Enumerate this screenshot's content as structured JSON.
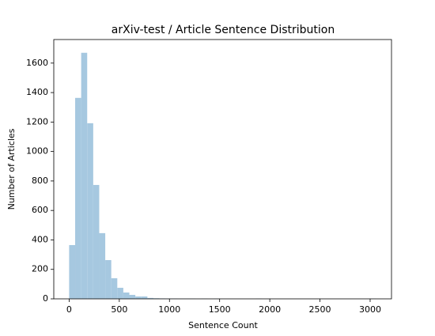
{
  "chart_data": {
    "type": "histogram",
    "title": "arXiv-test / Article Sentence Distribution",
    "x_label": "Sentence Count",
    "y_label": "Number of Articles",
    "color": "#a6c8e0",
    "bins": [
      0,
      60,
      120,
      180,
      240,
      300,
      360,
      420,
      480,
      540,
      600,
      660,
      720,
      780,
      840,
      900,
      960,
      1020,
      1080,
      1140,
      1200,
      1260,
      1320,
      1380,
      1440,
      1500,
      1560,
      1620,
      1680,
      1740,
      1800,
      1860,
      1920,
      1980,
      2040,
      2100,
      2160,
      2220,
      2280,
      2340,
      2400,
      2460,
      2520,
      2580,
      2640,
      2700,
      2760,
      2820,
      2880,
      2940,
      3000,
      3060
    ],
    "values": [
      365,
      1364,
      1670,
      1192,
      773,
      446,
      263,
      140,
      75,
      43,
      27,
      16,
      16,
      6,
      4,
      3,
      2,
      2,
      1,
      1,
      1,
      0,
      1,
      0,
      1,
      0,
      0,
      0,
      0,
      0,
      0,
      1,
      0,
      0,
      0,
      0,
      0,
      0,
      0,
      0,
      0,
      0,
      0,
      0,
      0,
      0,
      0,
      0,
      0,
      0,
      1
    ],
    "xlim": [
      -153,
      3213
    ],
    "ylim": [
      0,
      1760
    ],
    "xticks": [
      0,
      500,
      1000,
      1500,
      2000,
      2500,
      3000
    ],
    "yticks": [
      0,
      200,
      400,
      600,
      800,
      1000,
      1200,
      1400,
      1600
    ]
  }
}
